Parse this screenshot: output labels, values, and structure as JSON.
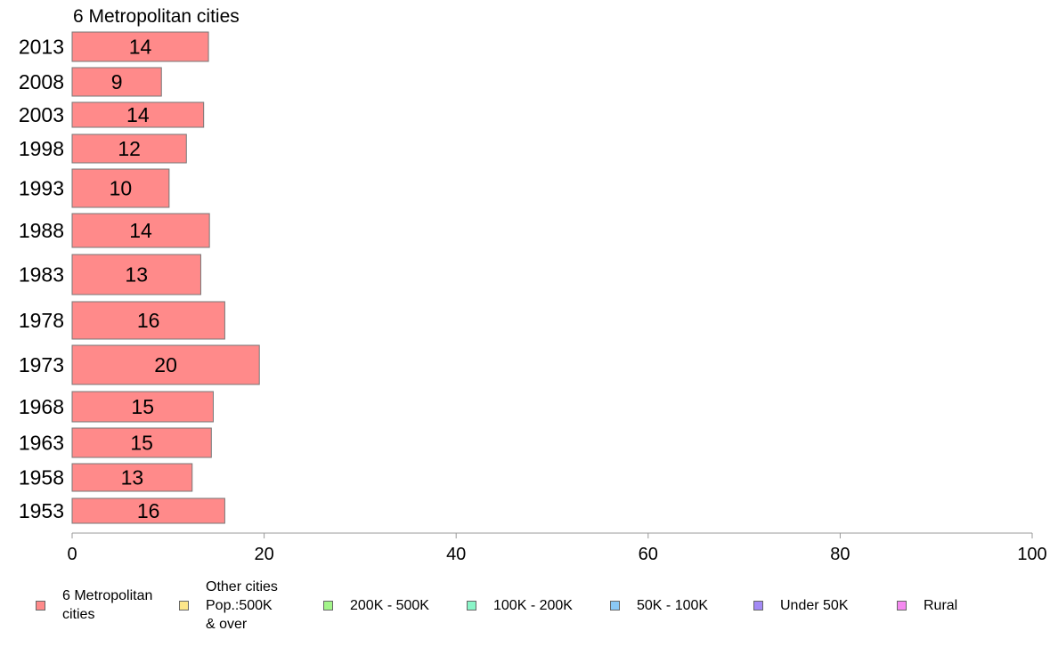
{
  "chart_data": {
    "type": "bar",
    "orientation": "horizontal",
    "title": "6 Metropolitan cities",
    "categories": [
      "2013",
      "2008",
      "2003",
      "1998",
      "1993",
      "1988",
      "1983",
      "1978",
      "1973",
      "1968",
      "1963",
      "1958",
      "1953"
    ],
    "series": [
      {
        "name": "6 Metropolitan\n cities",
        "color": "#ff8a8a",
        "values": [
          14.2,
          9.3,
          13.7,
          11.9,
          10.1,
          14.3,
          13.4,
          15.9,
          19.5,
          14.7,
          14.5,
          12.5,
          15.9
        ],
        "labels": [
          "14",
          "9",
          "14",
          "12",
          "10",
          "14",
          "13",
          "16",
          "20",
          "15",
          "15",
          "13",
          "16"
        ]
      }
    ],
    "xlim": [
      0,
      100
    ],
    "x_ticks": [
      "0",
      "20",
      "40",
      "60",
      "80",
      "100"
    ],
    "grid": false,
    "legend_position": "bottom",
    "legend": [
      {
        "label": "6 Metropolitan\n cities",
        "color": "#ff8a8a"
      },
      {
        "label": "Other cities\nPop.:500K\n & over",
        "color": "#fde68a"
      },
      {
        "label": "200K - 500K",
        "color": "#a3f58a"
      },
      {
        "label": "100K - 200K",
        "color": "#8af5c8"
      },
      {
        "label": "50K - 100K",
        "color": "#8ac8f5"
      },
      {
        "label": "Under 50K",
        "color": "#a38af5"
      },
      {
        "label": "Rural",
        "color": "#f58af0"
      }
    ]
  }
}
